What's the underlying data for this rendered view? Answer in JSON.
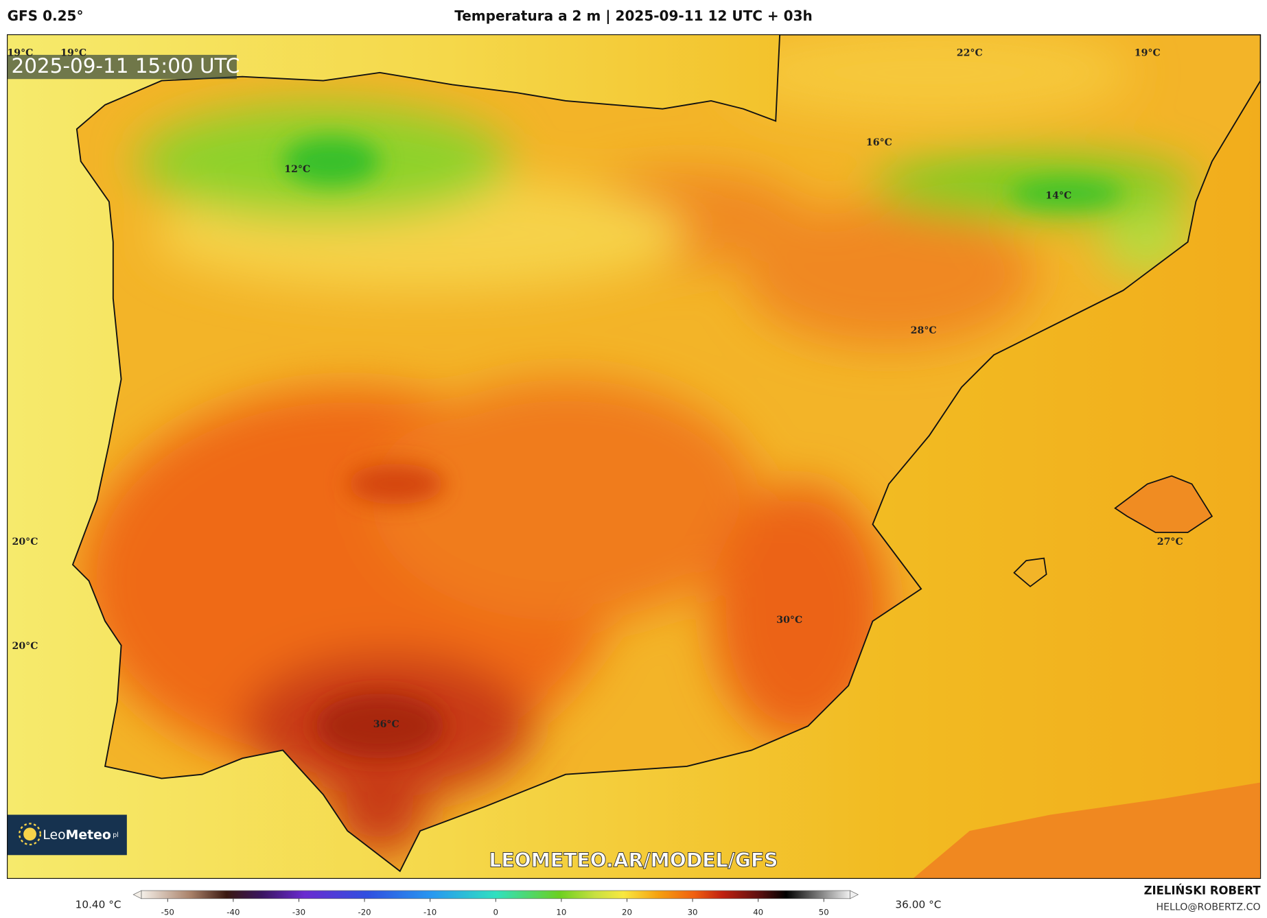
{
  "header": {
    "model": "GFS 0.25°",
    "title": "Temperatura a 2 m | 2025-09-11 12 UTC + 03h"
  },
  "map": {
    "valid_time": "2025-09-11 15:00 UTC",
    "labels": [
      "19°C",
      "19°C",
      "22°C",
      "19°C",
      "16°C",
      "12°C",
      "14°C",
      "28°C",
      "20°C",
      "27°C",
      "20°C",
      "30°C",
      "36°C"
    ],
    "watermark": "LEOMETEO.AR/MODEL/GFS",
    "logo": {
      "light": "Leo",
      "bold": "Meteo",
      "suffix": "pl"
    }
  },
  "colorbar": {
    "min_label": "10.40 °C",
    "max_label": "36.00 °C",
    "range": [
      -54,
      54
    ],
    "ticks": [
      -50,
      -40,
      -30,
      -20,
      -10,
      0,
      10,
      20,
      30,
      40,
      50
    ]
  },
  "footer": {
    "author": "ZIELIŃSKI ROBERT",
    "email": "HELLO@ROBERTZ.CO"
  }
}
